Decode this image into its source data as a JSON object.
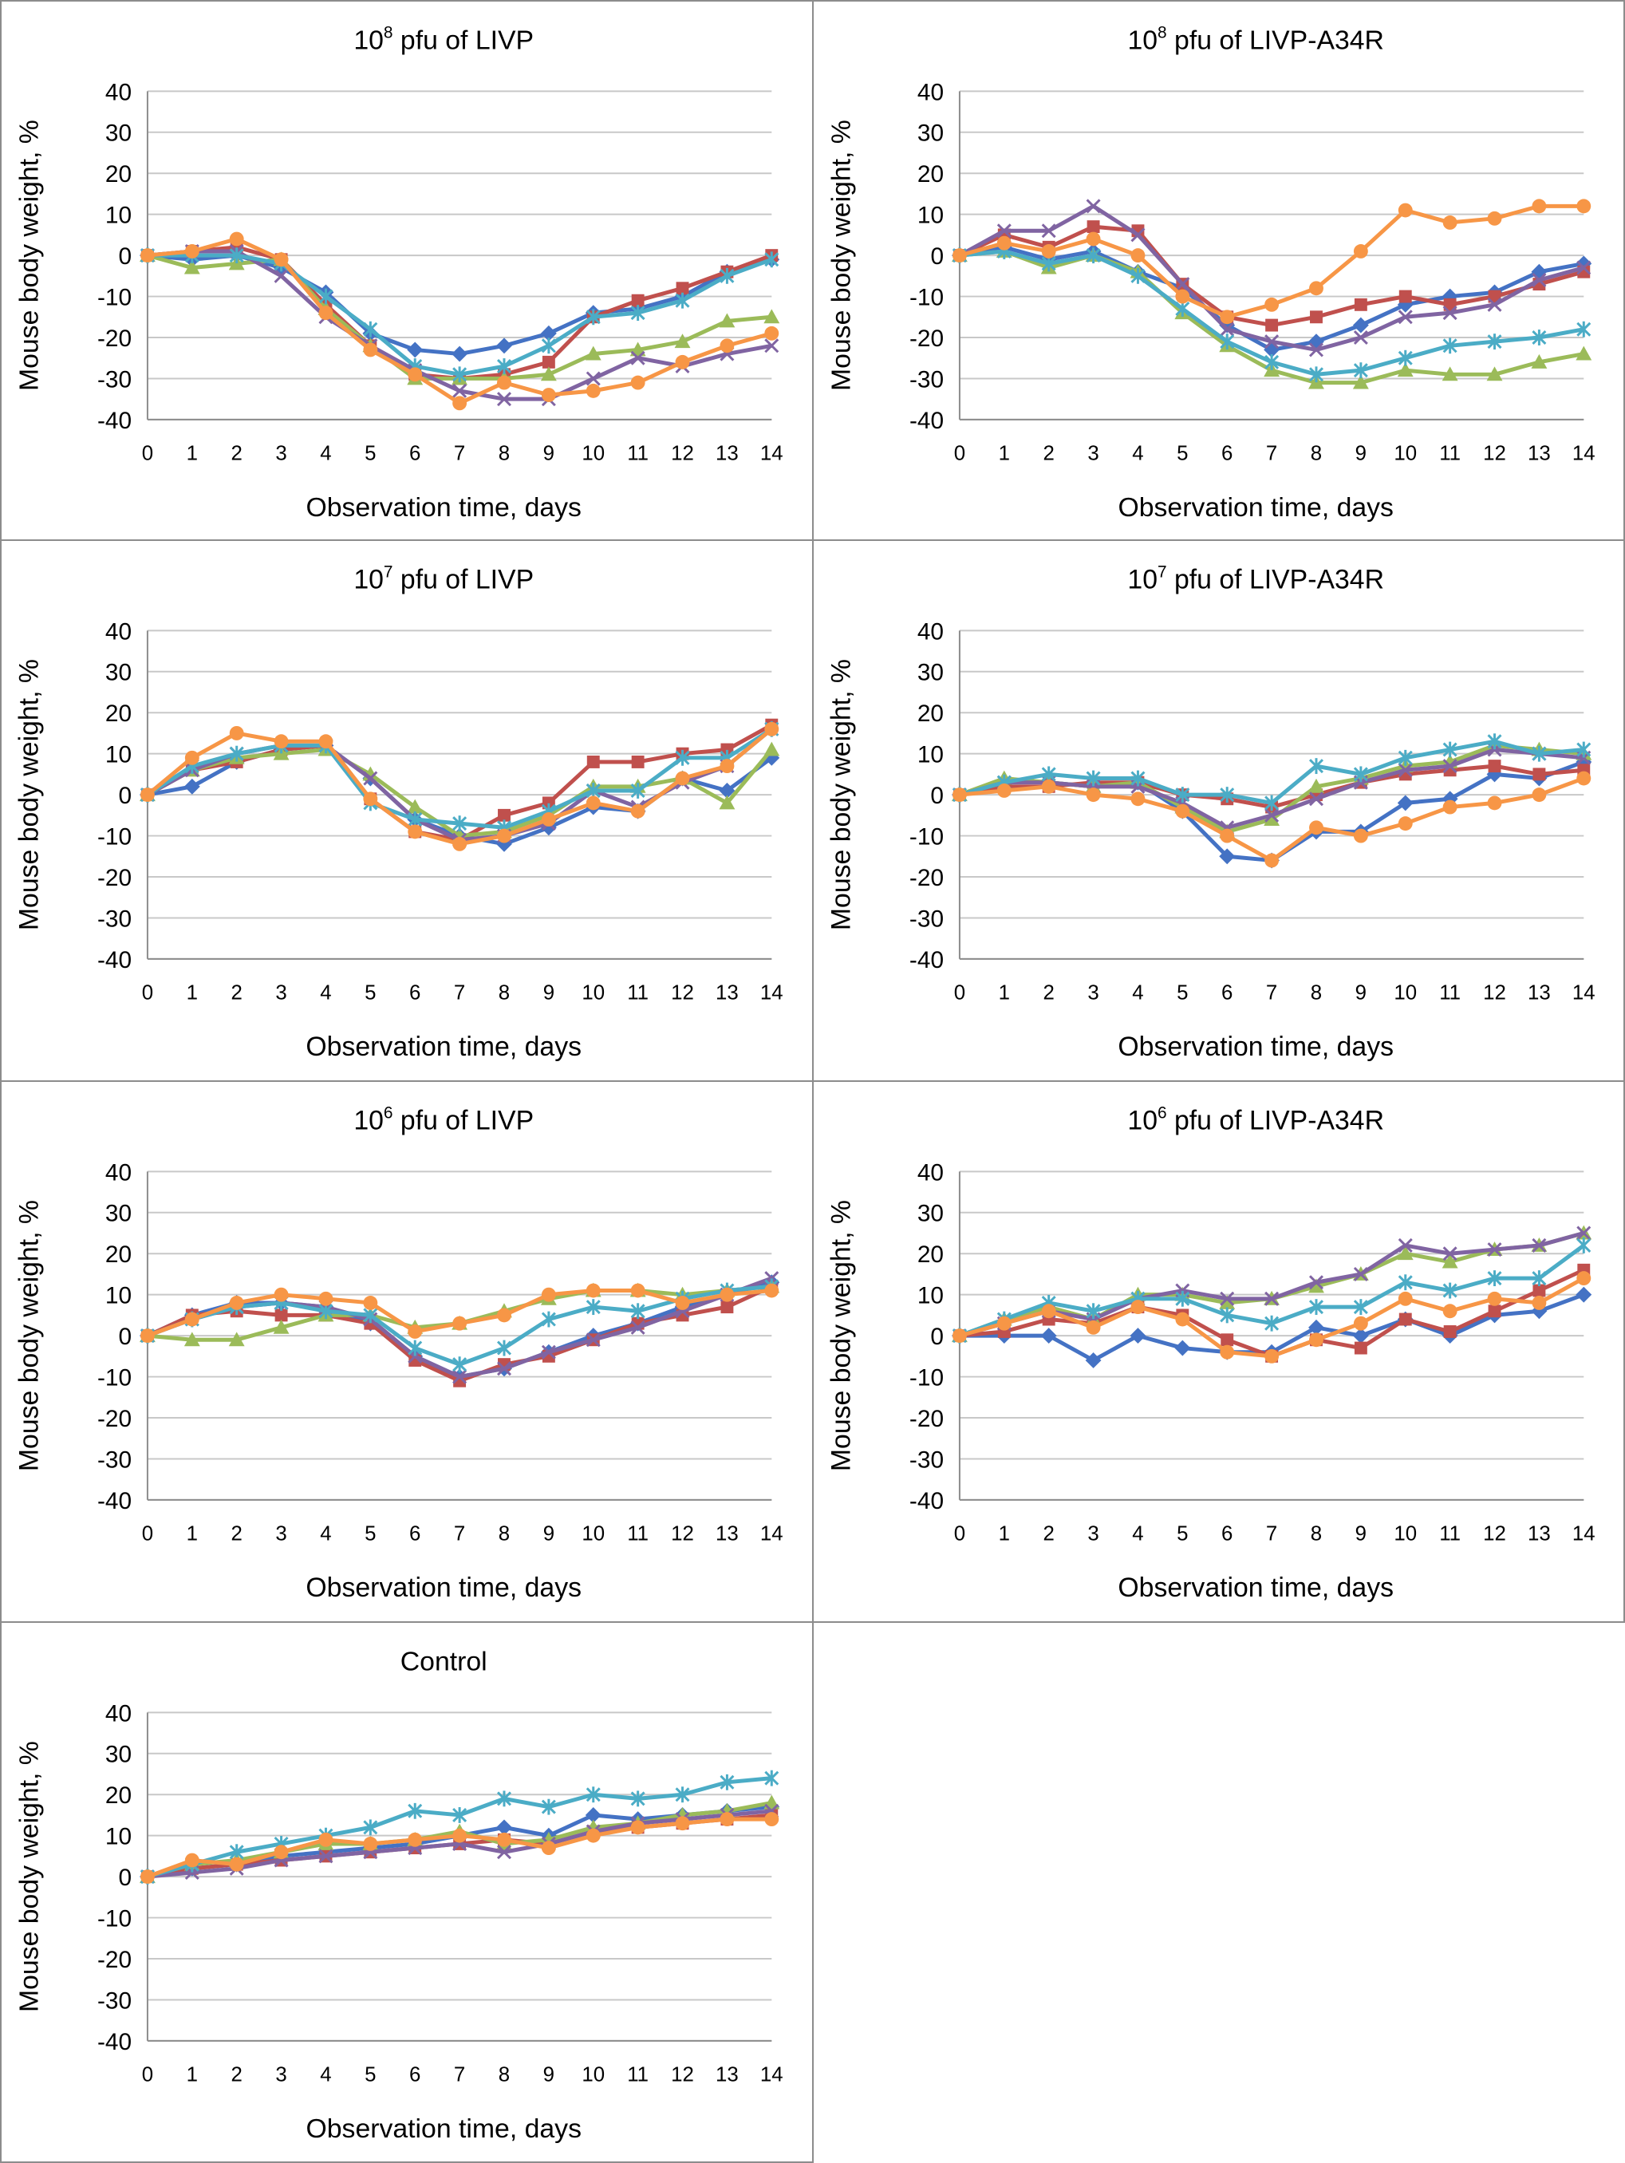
{
  "series_colors": [
    "#4472c4",
    "#c0504d",
    "#9bbb59",
    "#8064a2",
    "#4bacc6",
    "#f79646"
  ],
  "series_markers": [
    "diamond",
    "square",
    "triangle",
    "x",
    "star",
    "circle"
  ],
  "chart_data": [
    {
      "type": "line",
      "title_base": "10",
      "title_exp": "8",
      "title_rest": " pfu of LIVP",
      "xlabel": "Observation time, days",
      "ylabel": "Mouse body weight, %",
      "x": [
        0,
        1,
        2,
        3,
        4,
        5,
        6,
        7,
        8,
        9,
        10,
        11,
        12,
        13,
        14
      ],
      "yticks": [
        "40",
        "30",
        "20",
        "10",
        "0",
        "-10",
        "-20",
        "-30",
        "-40"
      ],
      "ylim": [
        -40,
        40
      ],
      "grid": true,
      "series": [
        {
          "values": [
            0,
            -1,
            0,
            -3,
            -9,
            -19,
            -23,
            -24,
            -22,
            -19,
            -14,
            -13,
            -10,
            -4,
            -1
          ]
        },
        {
          "values": [
            0,
            1,
            2,
            -1,
            -12,
            -22,
            -29,
            -30,
            -29,
            -26,
            -15,
            -11,
            -8,
            -4,
            0
          ]
        },
        {
          "values": [
            0,
            -3,
            -2,
            -1,
            -13,
            -22,
            -30,
            -30,
            -30,
            -29,
            -24,
            -23,
            -21,
            -16,
            -15
          ]
        },
        {
          "values": [
            0,
            1,
            1,
            -5,
            -15,
            -22,
            -28,
            -33,
            -35,
            -35,
            -30,
            -25,
            -27,
            -24,
            -22
          ]
        },
        {
          "values": [
            0,
            0,
            0,
            -2,
            -10,
            -18,
            -27,
            -29,
            -27,
            -22,
            -15,
            -14,
            -11,
            -5,
            -1
          ]
        },
        {
          "values": [
            0,
            1,
            4,
            -1,
            -14,
            -23,
            -29,
            -36,
            -31,
            -34,
            -33,
            -31,
            -26,
            -22,
            -19
          ]
        }
      ]
    },
    {
      "type": "line",
      "title_base": "10",
      "title_exp": "8",
      "title_rest": " pfu of LIVP-A34R",
      "xlabel": "Observation time, days",
      "ylabel": "Mouse body weight, %",
      "x": [
        0,
        1,
        2,
        3,
        4,
        5,
        6,
        7,
        8,
        9,
        10,
        11,
        12,
        13,
        14
      ],
      "yticks": [
        "40",
        "30",
        "20",
        "10",
        "0",
        "-10",
        "-20",
        "-30",
        "-40"
      ],
      "ylim": [
        -40,
        40
      ],
      "grid": true,
      "series": [
        {
          "values": [
            0,
            2,
            -1,
            1,
            -4,
            -8,
            -17,
            -23,
            -21,
            -17,
            -12,
            -10,
            -9,
            -4,
            -2
          ]
        },
        {
          "values": [
            0,
            5,
            2,
            7,
            6,
            -7,
            -15,
            -17,
            -15,
            -12,
            -10,
            -12,
            -10,
            -7,
            -4
          ]
        },
        {
          "values": [
            0,
            1,
            -3,
            0,
            -4,
            -14,
            -22,
            -28,
            -31,
            -31,
            -28,
            -29,
            -29,
            -26,
            -24
          ]
        },
        {
          "values": [
            0,
            6,
            6,
            12,
            5,
            -7,
            -18,
            -21,
            -23,
            -20,
            -15,
            -14,
            -12,
            -6,
            -3
          ]
        },
        {
          "values": [
            0,
            1,
            -2,
            0,
            -5,
            -13,
            -21,
            -26,
            -29,
            -28,
            -25,
            -22,
            -21,
            -20,
            -18
          ]
        },
        {
          "values": [
            0,
            3,
            1,
            4,
            0,
            -10,
            -15,
            -12,
            -8,
            1,
            11,
            8,
            9,
            12,
            12
          ]
        }
      ]
    },
    {
      "type": "line",
      "title_base": "10",
      "title_exp": "7",
      "title_rest": " pfu of LIVP",
      "xlabel": "Observation time, days",
      "ylabel": "Mouse body weight, %",
      "x": [
        0,
        1,
        2,
        3,
        4,
        5,
        6,
        7,
        8,
        9,
        10,
        11,
        12,
        13,
        14
      ],
      "yticks": [
        "40",
        "30",
        "20",
        "10",
        "0",
        "-10",
        "-20",
        "-30",
        "-40"
      ],
      "ylim": [
        -40,
        40
      ],
      "grid": true,
      "series": [
        {
          "values": [
            0,
            2,
            8,
            11,
            12,
            4,
            -6,
            -10,
            -12,
            -8,
            -3,
            -4,
            4,
            1,
            9
          ]
        },
        {
          "values": [
            0,
            6,
            8,
            11,
            12,
            -1,
            -9,
            -11,
            -5,
            -2,
            8,
            8,
            10,
            11,
            17
          ]
        },
        {
          "values": [
            0,
            6,
            9,
            10,
            11,
            5,
            -3,
            -10,
            -9,
            -5,
            2,
            2,
            4,
            -2,
            11
          ]
        },
        {
          "values": [
            0,
            6,
            10,
            12,
            12,
            4,
            -6,
            -11,
            -10,
            -7,
            1,
            -3,
            3,
            7,
            16
          ]
        },
        {
          "values": [
            0,
            7,
            10,
            12,
            12,
            -2,
            -6,
            -7,
            -8,
            -4,
            1,
            1,
            9,
            9,
            16
          ]
        },
        {
          "values": [
            0,
            9,
            15,
            13,
            13,
            -1,
            -9,
            -12,
            -10,
            -6,
            -2,
            -4,
            4,
            7,
            16
          ]
        }
      ]
    },
    {
      "type": "line",
      "title_base": "10",
      "title_exp": "7",
      "title_rest": " pfu of LIVP-A34R",
      "xlabel": "Observation time, days",
      "ylabel": "Mouse body weight, %",
      "x": [
        0,
        1,
        2,
        3,
        4,
        5,
        6,
        7,
        8,
        9,
        10,
        11,
        12,
        13,
        14
      ],
      "yticks": [
        "40",
        "30",
        "20",
        "10",
        "0",
        "-10",
        "-20",
        "-30",
        "-40"
      ],
      "ylim": [
        -40,
        40
      ],
      "grid": true,
      "series": [
        {
          "values": [
            0,
            3,
            3,
            2,
            3,
            -4,
            -15,
            -16,
            -9,
            -9,
            -2,
            -1,
            5,
            4,
            8
          ]
        },
        {
          "values": [
            0,
            2,
            2,
            3,
            3,
            0,
            -1,
            -3,
            0,
            3,
            5,
            6,
            7,
            5,
            6
          ]
        },
        {
          "values": [
            0,
            4,
            3,
            2,
            3,
            -3,
            -9,
            -6,
            2,
            4,
            7,
            8,
            12,
            11,
            10
          ]
        },
        {
          "values": [
            0,
            3,
            3,
            2,
            2,
            -2,
            -8,
            -5,
            -1,
            3,
            6,
            7,
            11,
            10,
            9
          ]
        },
        {
          "values": [
            0,
            3,
            5,
            4,
            4,
            0,
            0,
            -2,
            7,
            5,
            9,
            11,
            13,
            10,
            11
          ]
        },
        {
          "values": [
            0,
            1,
            2,
            0,
            -1,
            -4,
            -10,
            -16,
            -8,
            -10,
            -7,
            -3,
            -2,
            0,
            4
          ]
        }
      ]
    },
    {
      "type": "line",
      "title_base": "10",
      "title_exp": "6",
      "title_rest": " pfu of LIVP",
      "xlabel": "Observation time, days",
      "ylabel": "Mouse body weight, %",
      "x": [
        0,
        1,
        2,
        3,
        4,
        5,
        6,
        7,
        8,
        9,
        10,
        11,
        12,
        13,
        14
      ],
      "yticks": [
        "40",
        "30",
        "20",
        "10",
        "0",
        "-10",
        "-20",
        "-30",
        "-40"
      ],
      "ylim": [
        -40,
        40
      ],
      "grid": true,
      "series": [
        {
          "values": [
            0,
            5,
            8,
            8,
            7,
            3,
            -5,
            -10,
            -8,
            -4,
            0,
            3,
            7,
            10,
            13
          ]
        },
        {
          "values": [
            0,
            5,
            6,
            5,
            5,
            3,
            -6,
            -11,
            -7,
            -5,
            -1,
            3,
            5,
            7,
            12
          ]
        },
        {
          "values": [
            0,
            -1,
            -1,
            2,
            5,
            5,
            2,
            3,
            6,
            9,
            11,
            11,
            10,
            11,
            12
          ]
        },
        {
          "values": [
            0,
            4,
            7,
            8,
            7,
            4,
            -5,
            -10,
            -8,
            -4,
            -1,
            2,
            6,
            10,
            14
          ]
        },
        {
          "values": [
            0,
            4,
            7,
            8,
            6,
            5,
            -3,
            -7,
            -3,
            4,
            7,
            6,
            9,
            11,
            12
          ]
        },
        {
          "values": [
            0,
            4,
            8,
            10,
            9,
            8,
            1,
            3,
            5,
            10,
            11,
            11,
            8,
            10,
            11
          ]
        }
      ]
    },
    {
      "type": "line",
      "title_base": "10",
      "title_exp": "6",
      "title_rest": " pfu of LIVP-A34R",
      "xlabel": "Observation time, days",
      "ylabel": "Mouse body weight, %",
      "x": [
        0,
        1,
        2,
        3,
        4,
        5,
        6,
        7,
        8,
        9,
        10,
        11,
        12,
        13,
        14
      ],
      "yticks": [
        "40",
        "30",
        "20",
        "10",
        "0",
        "-10",
        "-20",
        "-30",
        "-40"
      ],
      "ylim": [
        -40,
        40
      ],
      "grid": true,
      "series": [
        {
          "values": [
            0,
            0,
            0,
            -6,
            0,
            -3,
            -4,
            -4,
            2,
            0,
            4,
            0,
            5,
            6,
            10
          ]
        },
        {
          "values": [
            0,
            1,
            4,
            3,
            7,
            5,
            -1,
            -5,
            -1,
            -3,
            4,
            1,
            6,
            11,
            16
          ]
        },
        {
          "values": [
            0,
            4,
            7,
            4,
            10,
            10,
            8,
            9,
            12,
            15,
            20,
            18,
            21,
            22,
            25
          ]
        },
        {
          "values": [
            0,
            3,
            6,
            4,
            9,
            11,
            9,
            9,
            13,
            15,
            22,
            20,
            21,
            22,
            25
          ]
        },
        {
          "values": [
            0,
            4,
            8,
            6,
            9,
            9,
            5,
            3,
            7,
            7,
            13,
            11,
            14,
            14,
            22
          ]
        },
        {
          "values": [
            0,
            3,
            6,
            2,
            7,
            4,
            -4,
            -5,
            -1,
            3,
            9,
            6,
            9,
            8,
            14
          ]
        }
      ]
    },
    {
      "type": "line",
      "title_base": "Control",
      "title_exp": "",
      "title_rest": "",
      "xlabel": "Observation time, days",
      "ylabel": "Mouse body weight, %",
      "x": [
        0,
        1,
        2,
        3,
        4,
        5,
        6,
        7,
        8,
        9,
        10,
        11,
        12,
        13,
        14
      ],
      "yticks": [
        "40",
        "30",
        "20",
        "10",
        "0",
        "-10",
        "-20",
        "-30",
        "-40"
      ],
      "ylim": [
        -40,
        40
      ],
      "grid": true,
      "series": [
        {
          "values": [
            0,
            2,
            3,
            5,
            6,
            7,
            8,
            10,
            12,
            10,
            15,
            14,
            15,
            16,
            17
          ]
        },
        {
          "values": [
            0,
            2,
            3,
            4,
            5,
            6,
            7,
            8,
            9,
            8,
            11,
            12,
            13,
            14,
            15
          ]
        },
        {
          "values": [
            0,
            3,
            4,
            6,
            8,
            8,
            9,
            11,
            8,
            9,
            12,
            13,
            15,
            16,
            18
          ]
        },
        {
          "values": [
            0,
            1,
            2,
            4,
            5,
            6,
            7,
            8,
            6,
            8,
            11,
            13,
            14,
            15,
            16
          ]
        },
        {
          "values": [
            0,
            3,
            6,
            8,
            10,
            12,
            16,
            15,
            19,
            17,
            20,
            19,
            20,
            23,
            24
          ]
        },
        {
          "values": [
            0,
            4,
            3,
            6,
            9,
            8,
            9,
            10,
            9,
            7,
            10,
            12,
            13,
            14,
            14
          ]
        }
      ]
    }
  ]
}
